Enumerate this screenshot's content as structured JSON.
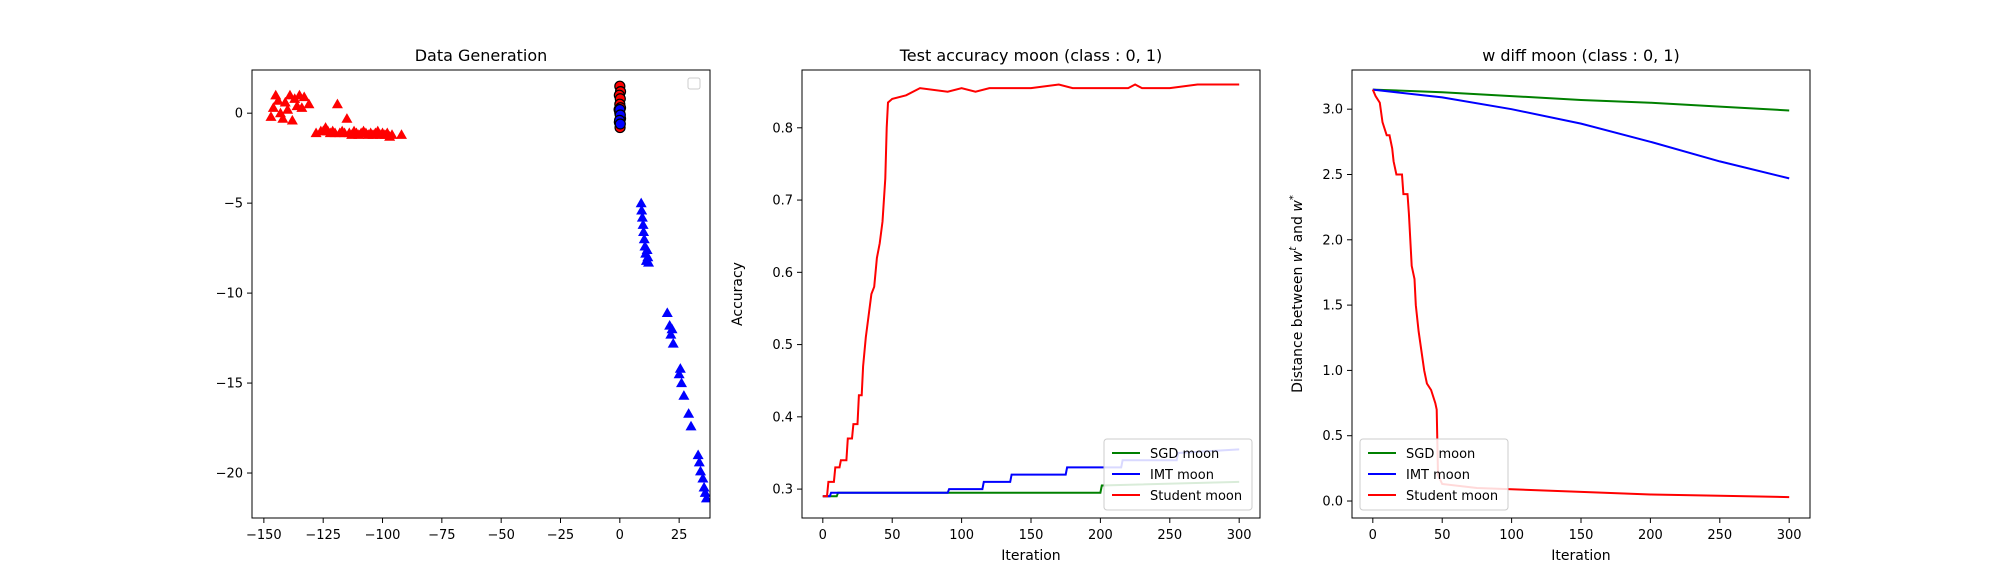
{
  "chart_data": [
    {
      "type": "scatter",
      "title": "Data Generation",
      "xlabel": "",
      "ylabel": "",
      "xlim": [
        -155,
        38
      ],
      "ylim": [
        -22.5,
        2.4
      ],
      "xticks": [
        -150,
        -125,
        -100,
        -75,
        -50,
        -25,
        0,
        25
      ],
      "yticks": [
        0,
        -5,
        -10,
        -15,
        -20
      ],
      "xtick_labels": [
        "−150",
        "−125",
        "−100",
        "−75",
        "−50",
        "−25",
        "0",
        "25"
      ],
      "ytick_labels": [
        "0",
        "−5",
        "−10",
        "−15",
        "−20"
      ],
      "legend": {
        "placement": "top-right",
        "entries": []
      },
      "series": [
        {
          "marker": "triangle",
          "color": "#ff0000",
          "points": [
            [
              -147,
              -0.2
            ],
            [
              -146,
              0.3
            ],
            [
              -145,
              1.0
            ],
            [
              -144,
              0.7
            ],
            [
              -143,
              0.0
            ],
            [
              -142,
              -0.3
            ],
            [
              -141,
              0.6
            ],
            [
              -140,
              0.2
            ],
            [
              -139,
              1.0
            ],
            [
              -138,
              -0.4
            ],
            [
              -137,
              0.8
            ],
            [
              -136,
              0.4
            ],
            [
              -135,
              1.0
            ],
            [
              -134,
              0.3
            ],
            [
              -133,
              0.9
            ],
            [
              -131,
              0.5
            ],
            [
              -128,
              -1.1
            ],
            [
              -126,
              -1.0
            ],
            [
              -125,
              -1.0
            ],
            [
              -124,
              -0.8
            ],
            [
              -123,
              -1.0
            ],
            [
              -122,
              -1.1
            ],
            [
              -121,
              -1.0
            ],
            [
              -120,
              -1.1
            ],
            [
              -119,
              0.5
            ],
            [
              -118,
              -1.1
            ],
            [
              -117,
              -1.0
            ],
            [
              -116,
              -1.1
            ],
            [
              -115,
              -0.3
            ],
            [
              -114,
              -1.1
            ],
            [
              -113,
              -1.2
            ],
            [
              -112,
              -1.0
            ],
            [
              -111,
              -1.1
            ],
            [
              -110,
              -1.2
            ],
            [
              -109,
              -1.1
            ],
            [
              -108,
              -1.0
            ],
            [
              -107,
              -1.1
            ],
            [
              -106,
              -1.2
            ],
            [
              -105,
              -1.1
            ],
            [
              -104,
              -1.2
            ],
            [
              -103,
              -1.1
            ],
            [
              -102,
              -1.0
            ],
            [
              -101,
              -1.2
            ],
            [
              -100,
              -1.1
            ],
            [
              -99,
              -1.2
            ],
            [
              -98,
              -1.1
            ],
            [
              -97,
              -1.3
            ],
            [
              -96,
              -1.2
            ],
            [
              -92,
              -1.2
            ]
          ]
        },
        {
          "marker": "triangle",
          "color": "#0000ff",
          "points": [
            [
              9.0,
              -5.0
            ],
            [
              9.2,
              -5.4
            ],
            [
              9.5,
              -5.8
            ],
            [
              9.8,
              -6.2
            ],
            [
              10.0,
              -6.6
            ],
            [
              10.3,
              -7.0
            ],
            [
              10.6,
              -7.4
            ],
            [
              10.9,
              -7.8
            ],
            [
              11.2,
              -8.2
            ],
            [
              11.5,
              -7.6
            ],
            [
              11.8,
              -8.0
            ],
            [
              12.1,
              -8.3
            ],
            [
              20,
              -11.1
            ],
            [
              21,
              -11.8
            ],
            [
              21.5,
              -12.3
            ],
            [
              22,
              -12.0
            ],
            [
              22.5,
              -12.8
            ],
            [
              25,
              -14.5
            ],
            [
              25.5,
              -14.2
            ],
            [
              26,
              -15.0
            ],
            [
              27,
              -15.7
            ],
            [
              29,
              -16.7
            ],
            [
              30,
              -17.4
            ],
            [
              33,
              -19.0
            ],
            [
              33.5,
              -19.4
            ],
            [
              34,
              -19.9
            ],
            [
              35,
              -20.3
            ],
            [
              35.5,
              -20.8
            ],
            [
              36,
              -21.1
            ],
            [
              36.5,
              -21.4
            ]
          ]
        },
        {
          "marker": "circle",
          "color": "#000000",
          "fill": "#ff0000",
          "points": [
            [
              0,
              1.5
            ],
            [
              0.3,
              1.2
            ],
            [
              -0.2,
              1.0
            ],
            [
              0.2,
              0.8
            ],
            [
              0,
              0.5
            ],
            [
              0.3,
              0.3
            ],
            [
              -0.3,
              0.2
            ],
            [
              0,
              0.0
            ],
            [
              0.3,
              -0.3
            ],
            [
              -0.2,
              -0.5
            ],
            [
              0.1,
              -0.8
            ]
          ]
        },
        {
          "marker": "circle",
          "color": "#000000",
          "fill": "#0000ff",
          "points": [
            [
              0,
              0.2
            ],
            [
              0.2,
              -0.1
            ],
            [
              -0.1,
              -0.4
            ],
            [
              0.2,
              -0.6
            ]
          ]
        }
      ]
    },
    {
      "type": "line",
      "title": "Test accuracy moon (class : 0, 1)",
      "xlabel": "Iteration",
      "ylabel": "Accuracy",
      "xlim": [
        -15,
        315
      ],
      "ylim": [
        0.26,
        0.88
      ],
      "xticks": [
        0,
        50,
        100,
        150,
        200,
        250,
        300
      ],
      "yticks": [
        0.3,
        0.4,
        0.5,
        0.6,
        0.7,
        0.8
      ],
      "legend": {
        "placement": "bottom-right"
      },
      "series": [
        {
          "name": "SGD moon",
          "color": "#008000",
          "points": [
            [
              0,
              0.29
            ],
            [
              10,
              0.29
            ],
            [
              11,
              0.295
            ],
            [
              200,
              0.295
            ],
            [
              201,
              0.305
            ],
            [
              300,
              0.31
            ]
          ]
        },
        {
          "name": "IMT moon",
          "color": "#0000ff",
          "points": [
            [
              0,
              0.29
            ],
            [
              5,
              0.29
            ],
            [
              6,
              0.295
            ],
            [
              90,
              0.295
            ],
            [
              91,
              0.3
            ],
            [
              115,
              0.3
            ],
            [
              116,
              0.31
            ],
            [
              135,
              0.31
            ],
            [
              136,
              0.32
            ],
            [
              175,
              0.32
            ],
            [
              176,
              0.33
            ],
            [
              215,
              0.33
            ],
            [
              216,
              0.34
            ],
            [
              255,
              0.34
            ],
            [
              256,
              0.35
            ],
            [
              300,
              0.355
            ]
          ]
        },
        {
          "name": "Student moon",
          "color": "#ff0000",
          "points": [
            [
              0,
              0.29
            ],
            [
              3,
              0.29
            ],
            [
              4,
              0.31
            ],
            [
              8,
              0.31
            ],
            [
              9,
              0.33
            ],
            [
              12,
              0.33
            ],
            [
              13,
              0.34
            ],
            [
              17,
              0.34
            ],
            [
              18,
              0.37
            ],
            [
              21,
              0.37
            ],
            [
              22,
              0.39
            ],
            [
              25,
              0.39
            ],
            [
              26,
              0.43
            ],
            [
              28,
              0.43
            ],
            [
              29,
              0.47
            ],
            [
              31,
              0.51
            ],
            [
              33,
              0.54
            ],
            [
              35,
              0.57
            ],
            [
              37,
              0.58
            ],
            [
              39,
              0.62
            ],
            [
              41,
              0.64
            ],
            [
              43,
              0.67
            ],
            [
              45,
              0.73
            ],
            [
              46,
              0.8
            ],
            [
              47,
              0.835
            ],
            [
              50,
              0.84
            ],
            [
              60,
              0.845
            ],
            [
              70,
              0.855
            ],
            [
              90,
              0.85
            ],
            [
              100,
              0.855
            ],
            [
              110,
              0.85
            ],
            [
              120,
              0.855
            ],
            [
              150,
              0.855
            ],
            [
              170,
              0.86
            ],
            [
              180,
              0.855
            ],
            [
              220,
              0.855
            ],
            [
              225,
              0.86
            ],
            [
              230,
              0.855
            ],
            [
              250,
              0.855
            ],
            [
              270,
              0.86
            ],
            [
              300,
              0.86
            ]
          ]
        }
      ]
    },
    {
      "type": "line",
      "title": "w diff moon (class : 0, 1)",
      "xlabel": "Iteration",
      "ylabel": "Distance between w^t and w^*",
      "xlim": [
        -15,
        315
      ],
      "ylim": [
        -0.13,
        3.3
      ],
      "xticks": [
        0,
        50,
        100,
        150,
        200,
        250,
        300
      ],
      "yticks": [
        0.0,
        0.5,
        1.0,
        1.5,
        2.0,
        2.5,
        3.0
      ],
      "ytick_labels": [
        "0.0",
        "0.5",
        "1.0",
        "1.5",
        "2.0",
        "2.5",
        "3.0"
      ],
      "legend": {
        "placement": "bottom-left"
      },
      "series": [
        {
          "name": "SGD moon",
          "color": "#008000",
          "points": [
            [
              0,
              3.15
            ],
            [
              50,
              3.13
            ],
            [
              100,
              3.1
            ],
            [
              150,
              3.07
            ],
            [
              200,
              3.05
            ],
            [
              250,
              3.02
            ],
            [
              300,
              2.99
            ]
          ]
        },
        {
          "name": "IMT moon",
          "color": "#0000ff",
          "points": [
            [
              0,
              3.15
            ],
            [
              50,
              3.09
            ],
            [
              100,
              3.0
            ],
            [
              150,
              2.89
            ],
            [
              200,
              2.75
            ],
            [
              250,
              2.6
            ],
            [
              300,
              2.47
            ]
          ]
        },
        {
          "name": "Student moon",
          "color": "#ff0000",
          "points": [
            [
              0,
              3.15
            ],
            [
              2,
              3.1
            ],
            [
              5,
              3.05
            ],
            [
              7,
              2.9
            ],
            [
              10,
              2.8
            ],
            [
              12,
              2.8
            ],
            [
              14,
              2.7
            ],
            [
              15,
              2.6
            ],
            [
              17,
              2.5
            ],
            [
              21,
              2.5
            ],
            [
              22,
              2.35
            ],
            [
              25,
              2.35
            ],
            [
              26,
              2.2
            ],
            [
              28,
              1.8
            ],
            [
              30,
              1.7
            ],
            [
              31,
              1.5
            ],
            [
              33,
              1.3
            ],
            [
              35,
              1.15
            ],
            [
              37,
              1.0
            ],
            [
              39,
              0.9
            ],
            [
              42,
              0.85
            ],
            [
              45,
              0.75
            ],
            [
              46,
              0.7
            ],
            [
              47,
              0.2
            ],
            [
              50,
              0.13
            ],
            [
              75,
              0.1
            ],
            [
              100,
              0.09
            ],
            [
              150,
              0.07
            ],
            [
              200,
              0.05
            ],
            [
              250,
              0.04
            ],
            [
              300,
              0.03
            ]
          ]
        }
      ]
    }
  ]
}
